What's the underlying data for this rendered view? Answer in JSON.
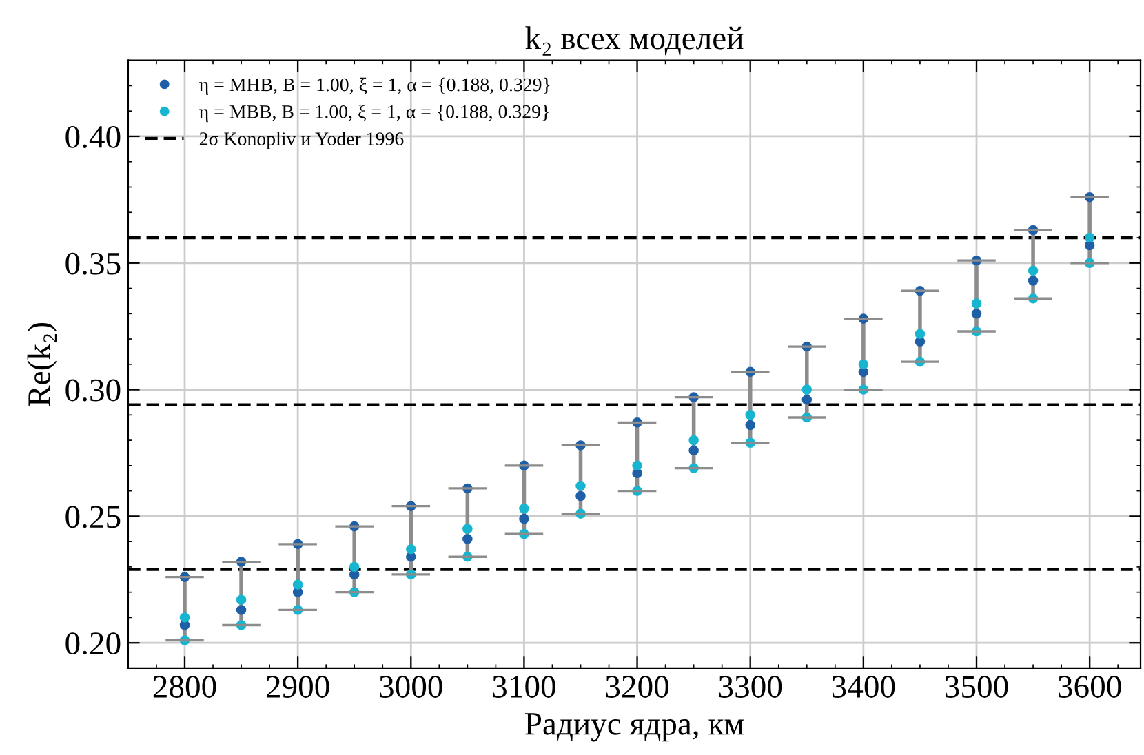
{
  "chart_data": {
    "type": "scatter",
    "title": "k₂ всех моделей",
    "xlabel": "Радиус ядра, км",
    "ylabel": "Re(k₂)",
    "xlim": [
      2750,
      3645
    ],
    "ylim": [
      0.19,
      0.43
    ],
    "xticks": [
      2800,
      2900,
      3000,
      3100,
      3200,
      3300,
      3400,
      3500,
      3600
    ],
    "yticks": [
      {
        "value": 0.2,
        "label": "0.20"
      },
      0.25,
      {
        "value": 0.3,
        "label": "0.30"
      },
      0.35,
      {
        "value": 0.4,
        "label": "0.40"
      }
    ],
    "grid": true,
    "legend": "top left",
    "marker": "circle",
    "series": [
      {
        "name": "η = MHB, B = 1.00, ξ = 1, α = {0.188, 0.329}",
        "color": "#1f5fa6",
        "x": [
          2800,
          2800,
          2850,
          2850,
          2900,
          2900,
          2950,
          2950,
          3000,
          3000,
          3050,
          3050,
          3100,
          3100,
          3150,
          3150,
          3200,
          3200,
          3250,
          3250,
          3300,
          3300,
          3350,
          3350,
          3400,
          3400,
          3450,
          3450,
          3500,
          3500,
          3550,
          3550,
          3600,
          3600
        ],
        "values": [
          0.226,
          0.207,
          0.232,
          0.213,
          0.239,
          0.22,
          0.246,
          0.227,
          0.254,
          0.234,
          0.261,
          0.241,
          0.27,
          0.249,
          0.278,
          0.258,
          0.287,
          0.267,
          0.297,
          0.276,
          0.307,
          0.286,
          0.317,
          0.296,
          0.328,
          0.307,
          0.339,
          0.319,
          0.351,
          0.33,
          0.363,
          0.343,
          0.376,
          0.357
        ],
        "errors": [
          [
            0.201,
            0.226
          ],
          null,
          [
            0.207,
            0.232
          ],
          null,
          [
            0.213,
            0.239
          ],
          null,
          [
            0.22,
            0.246
          ],
          null,
          [
            0.227,
            0.254
          ],
          null,
          [
            0.234,
            0.261
          ],
          null,
          [
            0.243,
            0.27
          ],
          null,
          [
            0.251,
            0.278
          ],
          null,
          [
            0.26,
            0.287
          ],
          null,
          [
            0.269,
            0.297
          ],
          null,
          [
            0.279,
            0.307
          ],
          null,
          [
            0.289,
            0.317
          ],
          null,
          [
            0.3,
            0.328
          ],
          null,
          [
            0.311,
            0.339
          ],
          null,
          [
            0.323,
            0.351
          ],
          null,
          [
            0.336,
            0.363
          ],
          null,
          [
            0.35,
            0.376
          ],
          null
        ]
      },
      {
        "name": "η = MBB, B = 1.00, ξ = 1, α = {0.188, 0.329}",
        "color": "#17b5cf",
        "x": [
          2800,
          2800,
          2850,
          2850,
          2900,
          2900,
          2950,
          2950,
          3000,
          3000,
          3050,
          3050,
          3100,
          3100,
          3150,
          3150,
          3200,
          3200,
          3250,
          3250,
          3300,
          3300,
          3350,
          3350,
          3400,
          3400,
          3450,
          3450,
          3500,
          3500,
          3550,
          3550,
          3600,
          3600
        ],
        "values": [
          0.21,
          0.201,
          0.217,
          0.207,
          0.223,
          0.213,
          0.23,
          0.22,
          0.237,
          0.227,
          0.245,
          0.234,
          0.253,
          0.243,
          0.262,
          0.251,
          0.27,
          0.26,
          0.28,
          0.269,
          0.29,
          0.279,
          0.3,
          0.289,
          0.31,
          0.3,
          0.322,
          0.311,
          0.334,
          0.323,
          0.347,
          0.336,
          0.36,
          0.35
        ]
      }
    ],
    "ref_lines": [
      {
        "axis": "y",
        "value": 0.36,
        "label": "2σ Konopliv и Yoder 1996",
        "color": "#000000",
        "line_style": "dashed"
      },
      {
        "axis": "y",
        "value": 0.294,
        "color": "#000000",
        "line_style": "dashed"
      },
      {
        "axis": "y",
        "value": 0.229,
        "color": "#000000",
        "line_style": "dashed"
      }
    ]
  }
}
